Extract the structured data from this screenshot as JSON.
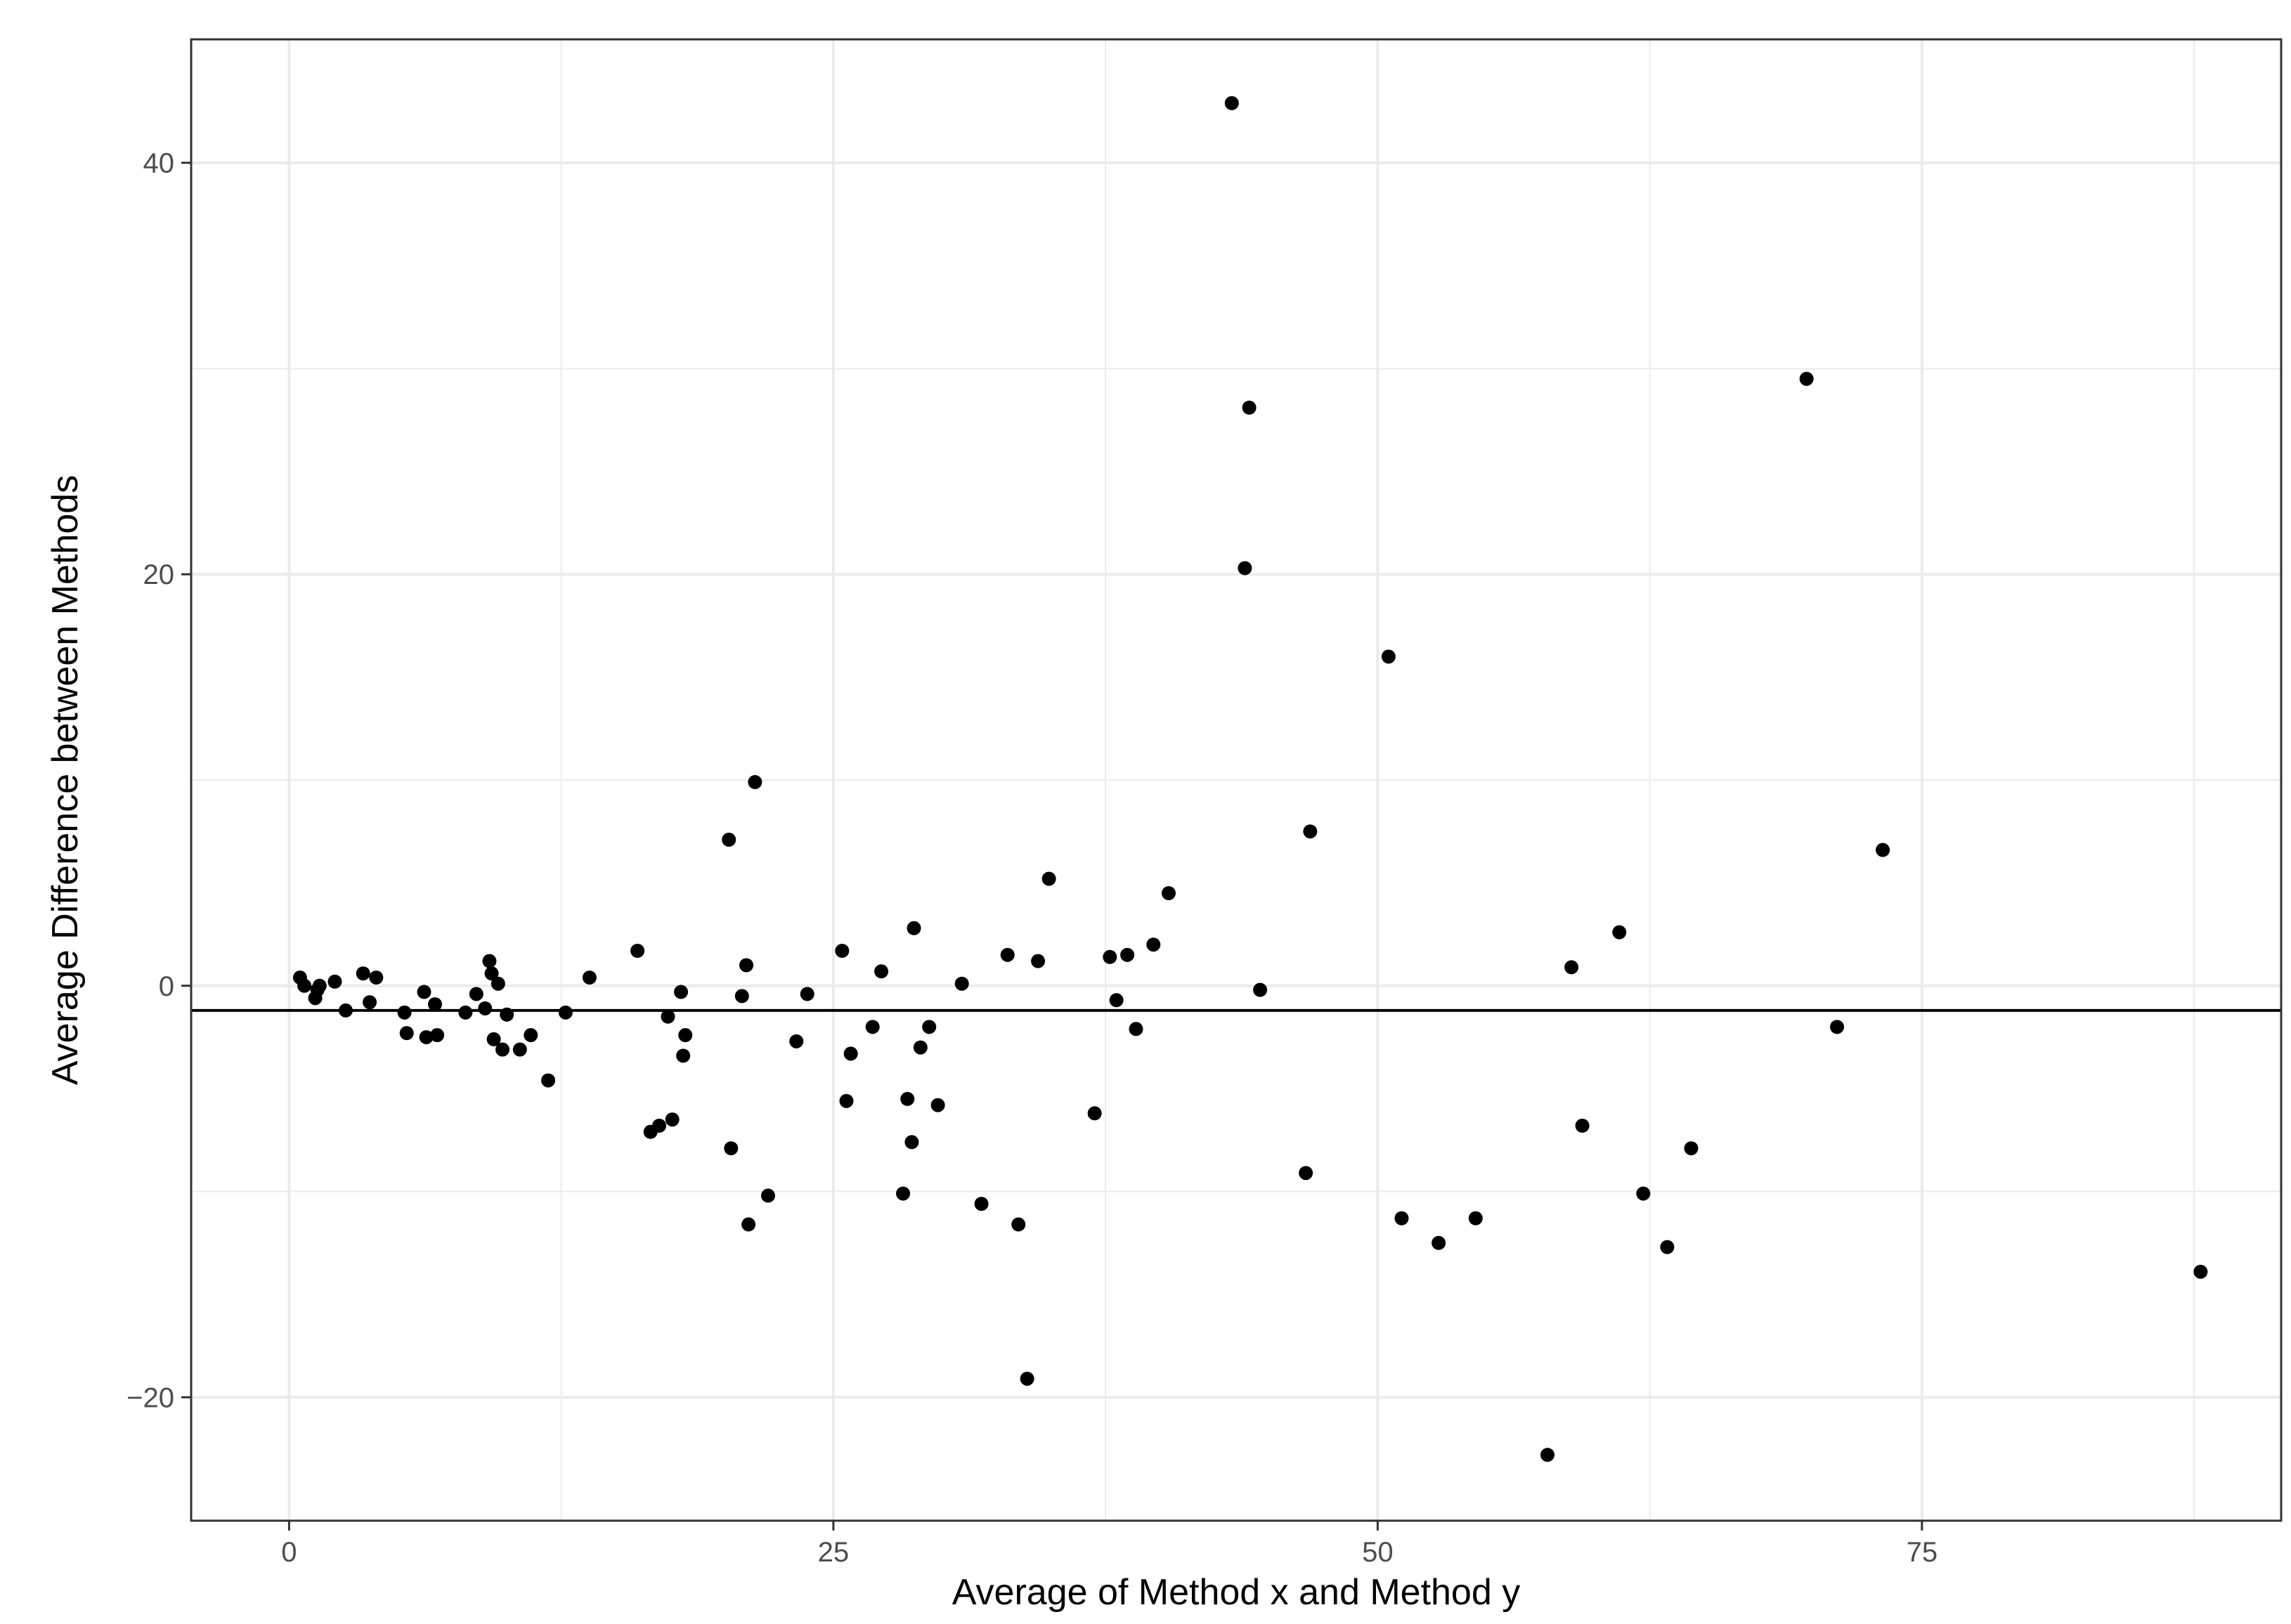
{
  "chart_data": {
    "type": "scatter",
    "title": "",
    "xlabel": "Average of Method x and Method y",
    "ylabel": "Average Difference between Methods",
    "xlim": [
      -4.5,
      91.5
    ],
    "ylim": [
      -26,
      46
    ],
    "x_ticks": [
      0,
      25,
      50,
      75
    ],
    "y_ticks": [
      -20,
      0,
      20,
      40
    ],
    "x_tick_labels": [
      "0",
      "25",
      "50",
      "75"
    ],
    "y_tick_labels": [
      "−20",
      "0",
      "20",
      "40"
    ],
    "grid": true,
    "reference_line": -1.2,
    "colors": {
      "points": "#000000",
      "grid": "#ebebeb",
      "panel_border": "#333333",
      "reference_line": "#000000"
    },
    "points": [
      [
        0.5,
        0.4
      ],
      [
        0.7,
        0.0
      ],
      [
        1.2,
        -0.6
      ],
      [
        1.3,
        -0.2
      ],
      [
        1.4,
        0.0
      ],
      [
        2.1,
        0.2
      ],
      [
        2.6,
        -1.2
      ],
      [
        3.4,
        0.6
      ],
      [
        3.7,
        -0.8
      ],
      [
        4.0,
        0.4
      ],
      [
        5.3,
        -1.3
      ],
      [
        5.4,
        -2.3
      ],
      [
        6.2,
        -0.3
      ],
      [
        6.3,
        -2.5
      ],
      [
        6.7,
        -0.9
      ],
      [
        6.8,
        -2.4
      ],
      [
        8.1,
        -1.3
      ],
      [
        8.6,
        -0.4
      ],
      [
        9.0,
        -1.1
      ],
      [
        9.2,
        1.2
      ],
      [
        9.3,
        0.6
      ],
      [
        9.4,
        -2.6
      ],
      [
        9.6,
        0.1
      ],
      [
        9.8,
        -3.1
      ],
      [
        10.0,
        -1.4
      ],
      [
        10.6,
        -3.1
      ],
      [
        11.1,
        -2.4
      ],
      [
        11.9,
        -4.6
      ],
      [
        12.7,
        -1.3
      ],
      [
        13.8,
        0.4
      ],
      [
        16.0,
        1.7
      ],
      [
        16.6,
        -7.1
      ],
      [
        17.0,
        -6.8
      ],
      [
        17.4,
        -1.5
      ],
      [
        17.6,
        -6.5
      ],
      [
        18.0,
        -0.3
      ],
      [
        18.1,
        -3.4
      ],
      [
        18.2,
        -2.4
      ],
      [
        20.2,
        7.1
      ],
      [
        20.3,
        -7.9
      ],
      [
        20.8,
        -0.5
      ],
      [
        21.0,
        1.0
      ],
      [
        21.1,
        -11.6
      ],
      [
        21.4,
        9.9
      ],
      [
        22.0,
        -10.2
      ],
      [
        23.3,
        -2.7
      ],
      [
        23.8,
        -0.4
      ],
      [
        25.4,
        1.7
      ],
      [
        25.6,
        -5.6
      ],
      [
        25.8,
        -3.3
      ],
      [
        26.8,
        -2.0
      ],
      [
        27.2,
        0.7
      ],
      [
        28.2,
        -10.1
      ],
      [
        28.4,
        -5.5
      ],
      [
        28.6,
        -7.6
      ],
      [
        28.7,
        2.8
      ],
      [
        29.0,
        -3.0
      ],
      [
        29.4,
        -2.0
      ],
      [
        29.8,
        -5.8
      ],
      [
        30.9,
        0.1
      ],
      [
        31.8,
        -10.6
      ],
      [
        33.0,
        1.5
      ],
      [
        33.5,
        -11.6
      ],
      [
        33.9,
        -19.1
      ],
      [
        34.4,
        1.2
      ],
      [
        34.9,
        5.2
      ],
      [
        37.0,
        -6.2
      ],
      [
        37.7,
        1.4
      ],
      [
        38.0,
        -0.7
      ],
      [
        38.5,
        1.5
      ],
      [
        38.9,
        -2.1
      ],
      [
        39.7,
        2.0
      ],
      [
        40.4,
        4.5
      ],
      [
        43.3,
        42.9
      ],
      [
        43.9,
        20.3
      ],
      [
        44.1,
        28.1
      ],
      [
        44.6,
        -0.2
      ],
      [
        46.7,
        -9.1
      ],
      [
        46.9,
        7.5
      ],
      [
        50.5,
        16.0
      ],
      [
        51.1,
        -11.3
      ],
      [
        52.8,
        -12.5
      ],
      [
        54.5,
        -11.3
      ],
      [
        57.8,
        -22.8
      ],
      [
        58.9,
        0.9
      ],
      [
        59.4,
        -6.8
      ],
      [
        61.1,
        2.6
      ],
      [
        62.2,
        -10.1
      ],
      [
        63.3,
        -12.7
      ],
      [
        64.4,
        -7.9
      ],
      [
        69.7,
        29.5
      ],
      [
        71.1,
        -2.0
      ],
      [
        73.2,
        6.6
      ],
      [
        87.8,
        -13.9
      ]
    ]
  }
}
